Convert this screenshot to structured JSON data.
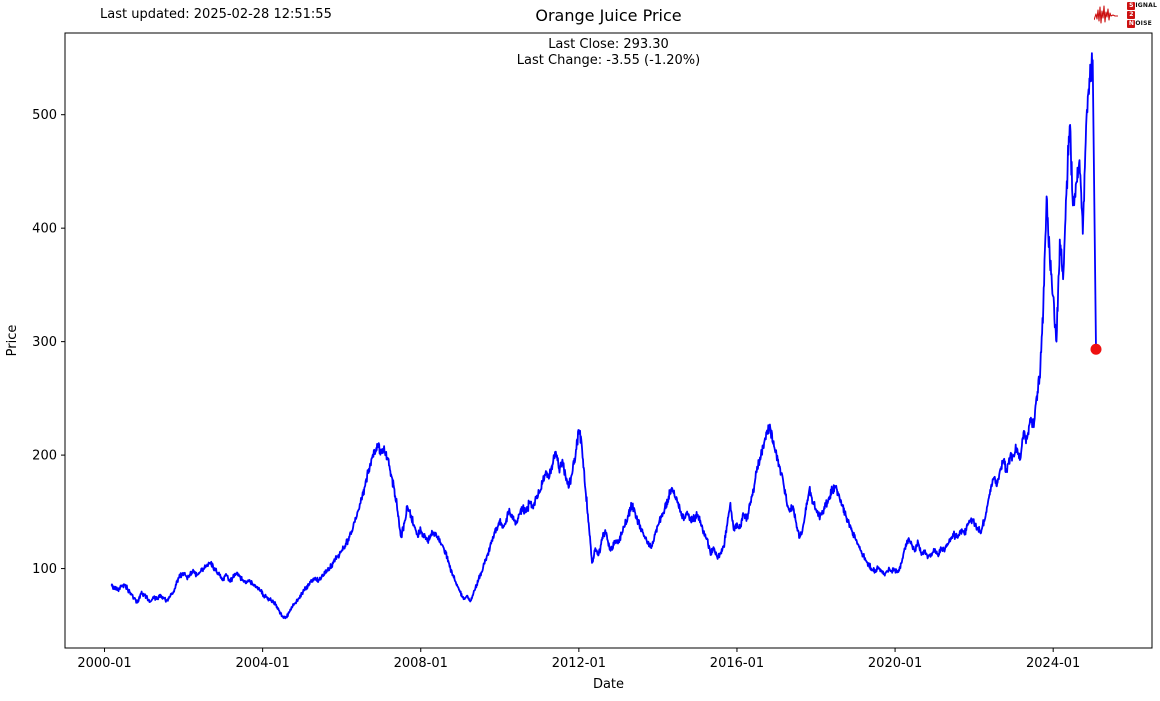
{
  "header": {
    "last_updated": "Last updated: 2025-02-28 12:51:55",
    "title": "Orange Juice Price",
    "last_close": "Last Close: 293.30",
    "last_change": "Last Change: -3.55 (-1.20%)"
  },
  "logo": {
    "line1_initial": "S",
    "line1_rest": "IGNAL",
    "line2_initial": "2",
    "line2_rest": "",
    "line3_initial": "N",
    "line3_rest": "OISE",
    "color": "#cc1111"
  },
  "chart_data": {
    "type": "line",
    "title": "Orange Juice Price",
    "xlabel": "Date",
    "ylabel": "Price",
    "legend": null,
    "grid": false,
    "x_ticks": [
      "2000-01",
      "2004-01",
      "2008-01",
      "2012-01",
      "2016-01",
      "2020-01",
      "2024-01"
    ],
    "y_ticks": [
      100,
      200,
      300,
      400,
      500
    ],
    "xlim_years": [
      1999.0,
      2026.5
    ],
    "ylim": [
      30,
      572
    ],
    "line_color": "#0000ff",
    "marker_color": "#ee1111",
    "last_point": {
      "date": "2025-02",
      "value": 293.3
    },
    "last_close": 293.3,
    "last_change": -3.55,
    "last_change_pct": -1.2,
    "series": [
      {
        "name": "Orange Juice Price",
        "dates": [
          "2000-03",
          "2000-04",
          "2000-05",
          "2000-06",
          "2000-07",
          "2000-08",
          "2000-09",
          "2000-10",
          "2000-11",
          "2000-12",
          "2001-01",
          "2001-02",
          "2001-03",
          "2001-04",
          "2001-05",
          "2001-06",
          "2001-07",
          "2001-08",
          "2001-09",
          "2001-10",
          "2001-11",
          "2001-12",
          "2002-01",
          "2002-02",
          "2002-03",
          "2002-04",
          "2002-05",
          "2002-06",
          "2002-07",
          "2002-08",
          "2002-09",
          "2002-10",
          "2002-11",
          "2002-12",
          "2003-01",
          "2003-02",
          "2003-03",
          "2003-04",
          "2003-05",
          "2003-06",
          "2003-07",
          "2003-08",
          "2003-09",
          "2003-10",
          "2003-11",
          "2003-12",
          "2004-01",
          "2004-02",
          "2004-03",
          "2004-04",
          "2004-05",
          "2004-06",
          "2004-07",
          "2004-08",
          "2004-09",
          "2004-10",
          "2004-11",
          "2004-12",
          "2005-01",
          "2005-02",
          "2005-03",
          "2005-04",
          "2005-05",
          "2005-06",
          "2005-07",
          "2005-08",
          "2005-09",
          "2005-10",
          "2005-11",
          "2005-12",
          "2006-01",
          "2006-02",
          "2006-03",
          "2006-04",
          "2006-05",
          "2006-06",
          "2006-07",
          "2006-08",
          "2006-09",
          "2006-10",
          "2006-11",
          "2006-12",
          "2007-01",
          "2007-02",
          "2007-03",
          "2007-04",
          "2007-05",
          "2007-06",
          "2007-07",
          "2007-08",
          "2007-09",
          "2007-10",
          "2007-11",
          "2007-12",
          "2008-01",
          "2008-02",
          "2008-03",
          "2008-04",
          "2008-05",
          "2008-06",
          "2008-07",
          "2008-08",
          "2008-09",
          "2008-10",
          "2008-11",
          "2008-12",
          "2009-01",
          "2009-02",
          "2009-03",
          "2009-04",
          "2009-05",
          "2009-06",
          "2009-07",
          "2009-08",
          "2009-09",
          "2009-10",
          "2009-11",
          "2009-12",
          "2010-01",
          "2010-02",
          "2010-03",
          "2010-04",
          "2010-05",
          "2010-06",
          "2010-07",
          "2010-08",
          "2010-09",
          "2010-10",
          "2010-11",
          "2010-12",
          "2011-01",
          "2011-02",
          "2011-03",
          "2011-04",
          "2011-05",
          "2011-06",
          "2011-07",
          "2011-08",
          "2011-09",
          "2011-10",
          "2011-11",
          "2011-12",
          "2012-01",
          "2012-02",
          "2012-03",
          "2012-04",
          "2012-05",
          "2012-06",
          "2012-07",
          "2012-08",
          "2012-09",
          "2012-10",
          "2012-11",
          "2012-12",
          "2013-01",
          "2013-02",
          "2013-03",
          "2013-04",
          "2013-05",
          "2013-06",
          "2013-07",
          "2013-08",
          "2013-09",
          "2013-10",
          "2013-11",
          "2013-12",
          "2014-01",
          "2014-02",
          "2014-03",
          "2014-04",
          "2014-05",
          "2014-06",
          "2014-07",
          "2014-08",
          "2014-09",
          "2014-10",
          "2014-11",
          "2014-12",
          "2015-01",
          "2015-02",
          "2015-03",
          "2015-04",
          "2015-05",
          "2015-06",
          "2015-07",
          "2015-08",
          "2015-09",
          "2015-10",
          "2015-11",
          "2015-12",
          "2016-01",
          "2016-02",
          "2016-03",
          "2016-04",
          "2016-05",
          "2016-06",
          "2016-07",
          "2016-08",
          "2016-09",
          "2016-10",
          "2016-11",
          "2016-12",
          "2017-01",
          "2017-02",
          "2017-03",
          "2017-04",
          "2017-05",
          "2017-06",
          "2017-07",
          "2017-08",
          "2017-09",
          "2017-10",
          "2017-11",
          "2017-12",
          "2018-01",
          "2018-02",
          "2018-03",
          "2018-04",
          "2018-05",
          "2018-06",
          "2018-07",
          "2018-08",
          "2018-09",
          "2018-10",
          "2018-11",
          "2018-12",
          "2019-01",
          "2019-02",
          "2019-03",
          "2019-04",
          "2019-05",
          "2019-06",
          "2019-07",
          "2019-08",
          "2019-09",
          "2019-10",
          "2019-11",
          "2019-12",
          "2020-01",
          "2020-02",
          "2020-03",
          "2020-04",
          "2020-05",
          "2020-06",
          "2020-07",
          "2020-08",
          "2020-09",
          "2020-10",
          "2020-11",
          "2020-12",
          "2021-01",
          "2021-02",
          "2021-03",
          "2021-04",
          "2021-05",
          "2021-06",
          "2021-07",
          "2021-08",
          "2021-09",
          "2021-10",
          "2021-11",
          "2021-12",
          "2022-01",
          "2022-02",
          "2022-03",
          "2022-04",
          "2022-05",
          "2022-06",
          "2022-07",
          "2022-08",
          "2022-09",
          "2022-10",
          "2022-11",
          "2022-12",
          "2023-01",
          "2023-02",
          "2023-03",
          "2023-04",
          "2023-05",
          "2023-06",
          "2023-07",
          "2023-08",
          "2023-09",
          "2023-10",
          "2023-11",
          "2023-12",
          "2024-01",
          "2024-02",
          "2024-03",
          "2024-04",
          "2024-05",
          "2024-06",
          "2024-07",
          "2024-08",
          "2024-09",
          "2024-10",
          "2024-11",
          "2024-12",
          "2025-01",
          "2025-02"
        ],
        "values": [
          85,
          83,
          81,
          84,
          86,
          82,
          78,
          74,
          70,
          78,
          77,
          74,
          71,
          75,
          73,
          77,
          74,
          72,
          76,
          80,
          88,
          94,
          96,
          92,
          95,
          98,
          94,
          97,
          100,
          102,
          105,
          101,
          97,
          94,
          91,
          94,
          89,
          92,
          95,
          93,
          90,
          87,
          90,
          86,
          84,
          82,
          78,
          75,
          73,
          71,
          68,
          63,
          58,
          57,
          61,
          66,
          70,
          74,
          78,
          82,
          85,
          89,
          92,
          90,
          94,
          97,
          99,
          103,
          108,
          112,
          116,
          120,
          126,
          133,
          141,
          151,
          161,
          172,
          185,
          196,
          204,
          207,
          205,
          203,
          196,
          183,
          170,
          150,
          128,
          140,
          154,
          147,
          138,
          130,
          134,
          128,
          124,
          130,
          132,
          128,
          123,
          118,
          110,
          100,
          92,
          86,
          79,
          73,
          76,
          71,
          78,
          86,
          94,
          102,
          110,
          118,
          128,
          136,
          142,
          136,
          144,
          150,
          145,
          140,
          148,
          154,
          150,
          158,
          154,
          162,
          168,
          176,
          186,
          180,
          192,
          203,
          188,
          196,
          180,
          172,
          184,
          200,
          222,
          205,
          170,
          140,
          105,
          118,
          112,
          125,
          134,
          120,
          117,
          124,
          125,
          130,
          138,
          146,
          156,
          150,
          142,
          135,
          128,
          122,
          118,
          130,
          138,
          145,
          152,
          160,
          170,
          165,
          158,
          150,
          145,
          148,
          142,
          145,
          147,
          140,
          133,
          126,
          112,
          118,
          110,
          114,
          120,
          138,
          158,
          134,
          140,
          136,
          148,
          145,
          156,
          170,
          185,
          198,
          208,
          220,
          227,
          210,
          200,
          190,
          178,
          160,
          150,
          155,
          140,
          127,
          136,
          152,
          170,
          158,
          152,
          146,
          150,
          156,
          163,
          170,
          172,
          165,
          155,
          147,
          140,
          133,
          126,
          120,
          113,
          108,
          103,
          99,
          97,
          101,
          98,
          96,
          99,
          98,
          99,
          97,
          105,
          118,
          126,
          122,
          115,
          123,
          112,
          116,
          110,
          113,
          115,
          112,
          118,
          115,
          121,
          126,
          130,
          127,
          134,
          131,
          138,
          143,
          140,
          136,
          131,
          142,
          155,
          168,
          180,
          175,
          188,
          196,
          185,
          200,
          200,
          206,
          196,
          220,
          214,
          232,
          226,
          252,
          268,
          330,
          428,
          370,
          340,
          300,
          390,
          355,
          430,
          490,
          420,
          440,
          460,
          395,
          490,
          532,
          548,
          293.3
        ]
      }
    ]
  }
}
